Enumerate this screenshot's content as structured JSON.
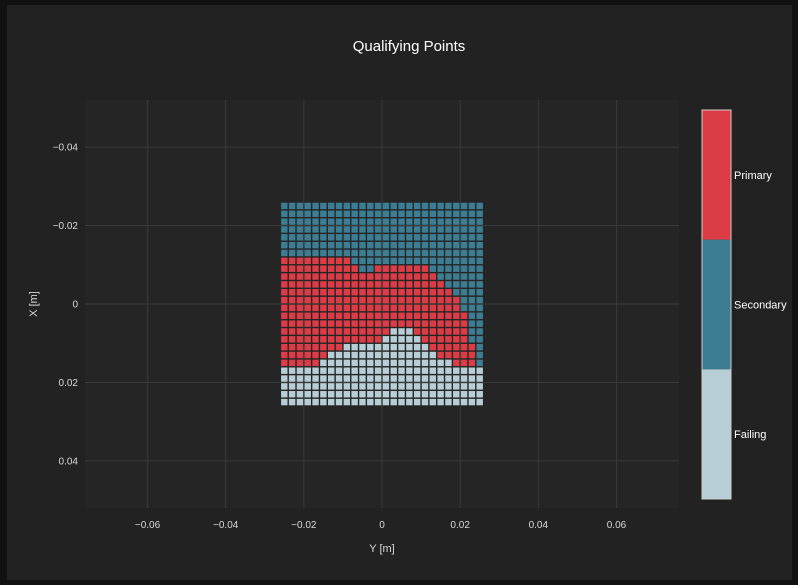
{
  "chart_data": {
    "type": "heatmap",
    "title": "Qualifying Points",
    "xlabel": "Y [m]",
    "ylabel": "X [m]",
    "xlim": [
      -0.076,
      0.076
    ],
    "ylim": [
      0.052,
      -0.052
    ],
    "y_reversed": true,
    "x_ticks": [
      -0.06,
      -0.04,
      -0.02,
      0,
      0.02,
      0.04,
      0.06
    ],
    "x_tick_labels": [
      "−0.06",
      "−0.04",
      "−0.02",
      "0",
      "0.02",
      "0.04",
      "0.06"
    ],
    "y_ticks": [
      -0.04,
      -0.02,
      0,
      0.02,
      0.04
    ],
    "y_tick_labels": [
      "−0.04",
      "−0.02",
      "0",
      "0.02",
      "0.04"
    ],
    "grid": true,
    "grid_extent": {
      "x_min": -0.025,
      "x_max": 0.025,
      "y_min": -0.025,
      "y_max": 0.025,
      "step": 0.002
    },
    "categories": [
      {
        "name": "Primary",
        "color": "#dc3c46"
      },
      {
        "name": "Secondary",
        "color": "#3c7d93"
      },
      {
        "name": "Failing",
        "color": "#b8ced6"
      }
    ],
    "colorbar": {
      "position": "right",
      "labels": [
        "Primary",
        "Secondary",
        "Failing"
      ]
    },
    "rows": [
      "SSSSSSSSSSSSSSSSSSSSSSSSSS",
      "SSSSSSSSSSSSSSSSSSSSSSSSSS",
      "SSSSSSSSSSSSSSSSSSSSSSSSSS",
      "SSSSSSSSSSSSSSSSSSSSSSSSSS",
      "SSSSSSSSSSSSSSSSSSSSSSSSSS",
      "SSSSSSSSSSSSSSSSSSSSSSSSSS",
      "SSSSSSSSSSSSSSSSSSSSSSSSSS",
      "PPPPPPPPPSSSSSSSSSSSSSSSSS",
      "PPPPPPPPPPSSPPPPPPPSSSSSSS",
      "PPPPPPPPPPPPPPPPPPPPSSSSSS",
      "PPPPPPPPPPPPPPPPPPPPPSSSSS",
      "PPPPPPPPPPPPPPPPPPPPPPSSSS",
      "PPPPPPPPPPPPPPPPPPPPPPPSSS",
      "PPPPPPPPPPPPPPPPPPPPPPPSSS",
      "PPPPPPPPPPPPPPPPPPPPPPPPSS",
      "PPPPPPPPPPPPPPPPPPPPPPPPSS",
      "PPPPPPPPPPPPPPFFFPPPPPPPSS",
      "PPPPPPPPPPPPPFFFFFPPPPPPSS",
      "PPPPPPPPFFFFFFFFFFFPPPPPPS",
      "PPPPPPFFFFFFFFFFFFFFPPPPPS",
      "PPPPPFFFFFFFFFFFFFFFFFPPPS",
      "FFFFFFFFFFFFFFFFFFFFFFFFFF",
      "FFFFFFFFFFFFFFFFFFFFFFFFFF",
      "FFFFFFFFFFFFFFFFFFFFFFFFFF",
      "FFFFFFFFFFFFFFFFFFFFFFFFFF",
      "FFFFFFFFFFFFFFFFFFFFFFFFFF"
    ]
  }
}
